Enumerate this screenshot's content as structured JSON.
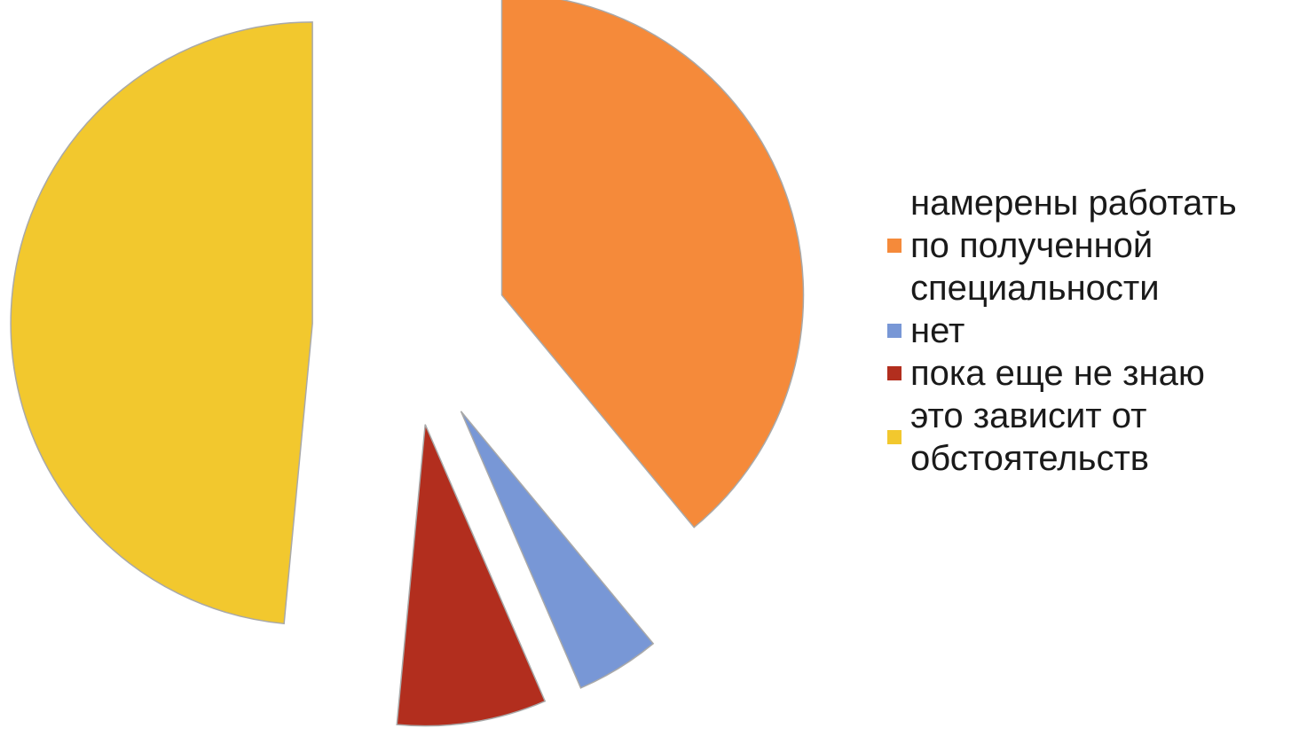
{
  "chart_data": {
    "type": "pie",
    "exploded": true,
    "legend_position": "right",
    "slices": [
      {
        "label": "намерены работать\nпо полученной\nспециальности",
        "value": 39.0,
        "color": "#F58A3A"
      },
      {
        "label": "нет",
        "value": 4.5,
        "color": "#7897D6"
      },
      {
        "label": "пока еще не знаю",
        "value": 8.0,
        "color": "#B22E1E"
      },
      {
        "label": "это зависит от\nобстоятельств",
        "value": 48.5,
        "color": "#F2C82E"
      }
    ]
  }
}
